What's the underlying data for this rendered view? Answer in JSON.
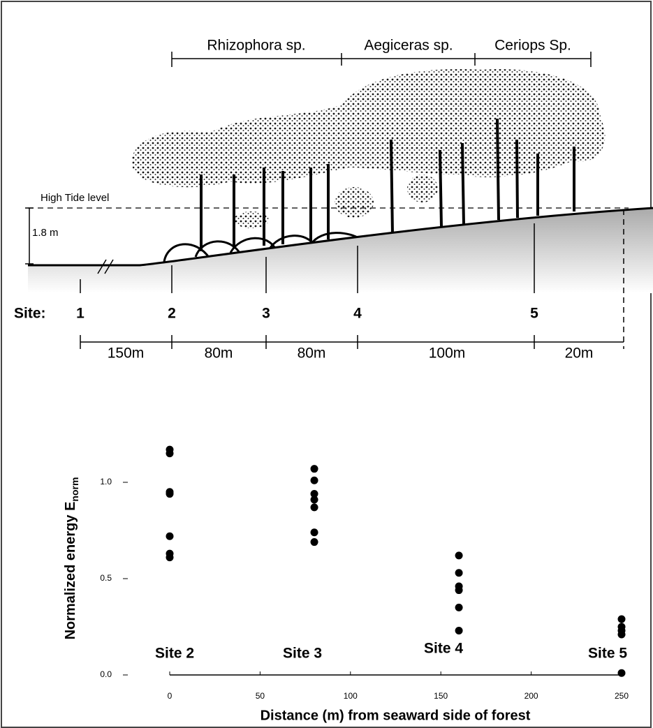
{
  "diagram": {
    "species": [
      "Rhizophora sp.",
      "Aegiceras sp.",
      "Ceriops Sp."
    ],
    "tide_label": "High Tide level",
    "height_label": "1.8 m",
    "site_label": "Site:",
    "sites": [
      "1",
      "2",
      "3",
      "4",
      "5"
    ],
    "distances": [
      "150m",
      "80m",
      "80m",
      "100m",
      "20m"
    ]
  },
  "chart_data": {
    "type": "scatter",
    "xlabel": "Distance (m) from seaward side of forest",
    "ylabel": "Normalized energy E",
    "ylabel_subscript": "norm",
    "annotations": [
      "Site 2",
      "Site 3",
      "Site 4",
      "Site 5"
    ],
    "x": [
      0,
      0,
      0,
      0,
      0,
      0,
      0,
      80,
      80,
      80,
      80,
      80,
      80,
      80,
      160,
      160,
      160,
      160,
      160,
      160,
      250,
      250,
      250,
      250,
      250
    ],
    "values": [
      1.17,
      1.15,
      0.95,
      0.94,
      0.72,
      0.63,
      0.61,
      1.07,
      1.01,
      0.94,
      0.91,
      0.87,
      0.74,
      0.69,
      0.62,
      0.53,
      0.46,
      0.44,
      0.35,
      0.23,
      0.29,
      0.25,
      0.23,
      0.21,
      0.01
    ],
    "color": "#000000",
    "xlim": [
      0,
      250
    ],
    "xticks": [
      0,
      50,
      100,
      150,
      200,
      250
    ],
    "ylim": [
      0,
      1.25
    ],
    "yticks": [
      {
        "value": 0,
        "label": "0.0"
      },
      {
        "value": 0.5,
        "label": "0.5"
      },
      {
        "value": 1,
        "label": "1.0"
      }
    ]
  }
}
